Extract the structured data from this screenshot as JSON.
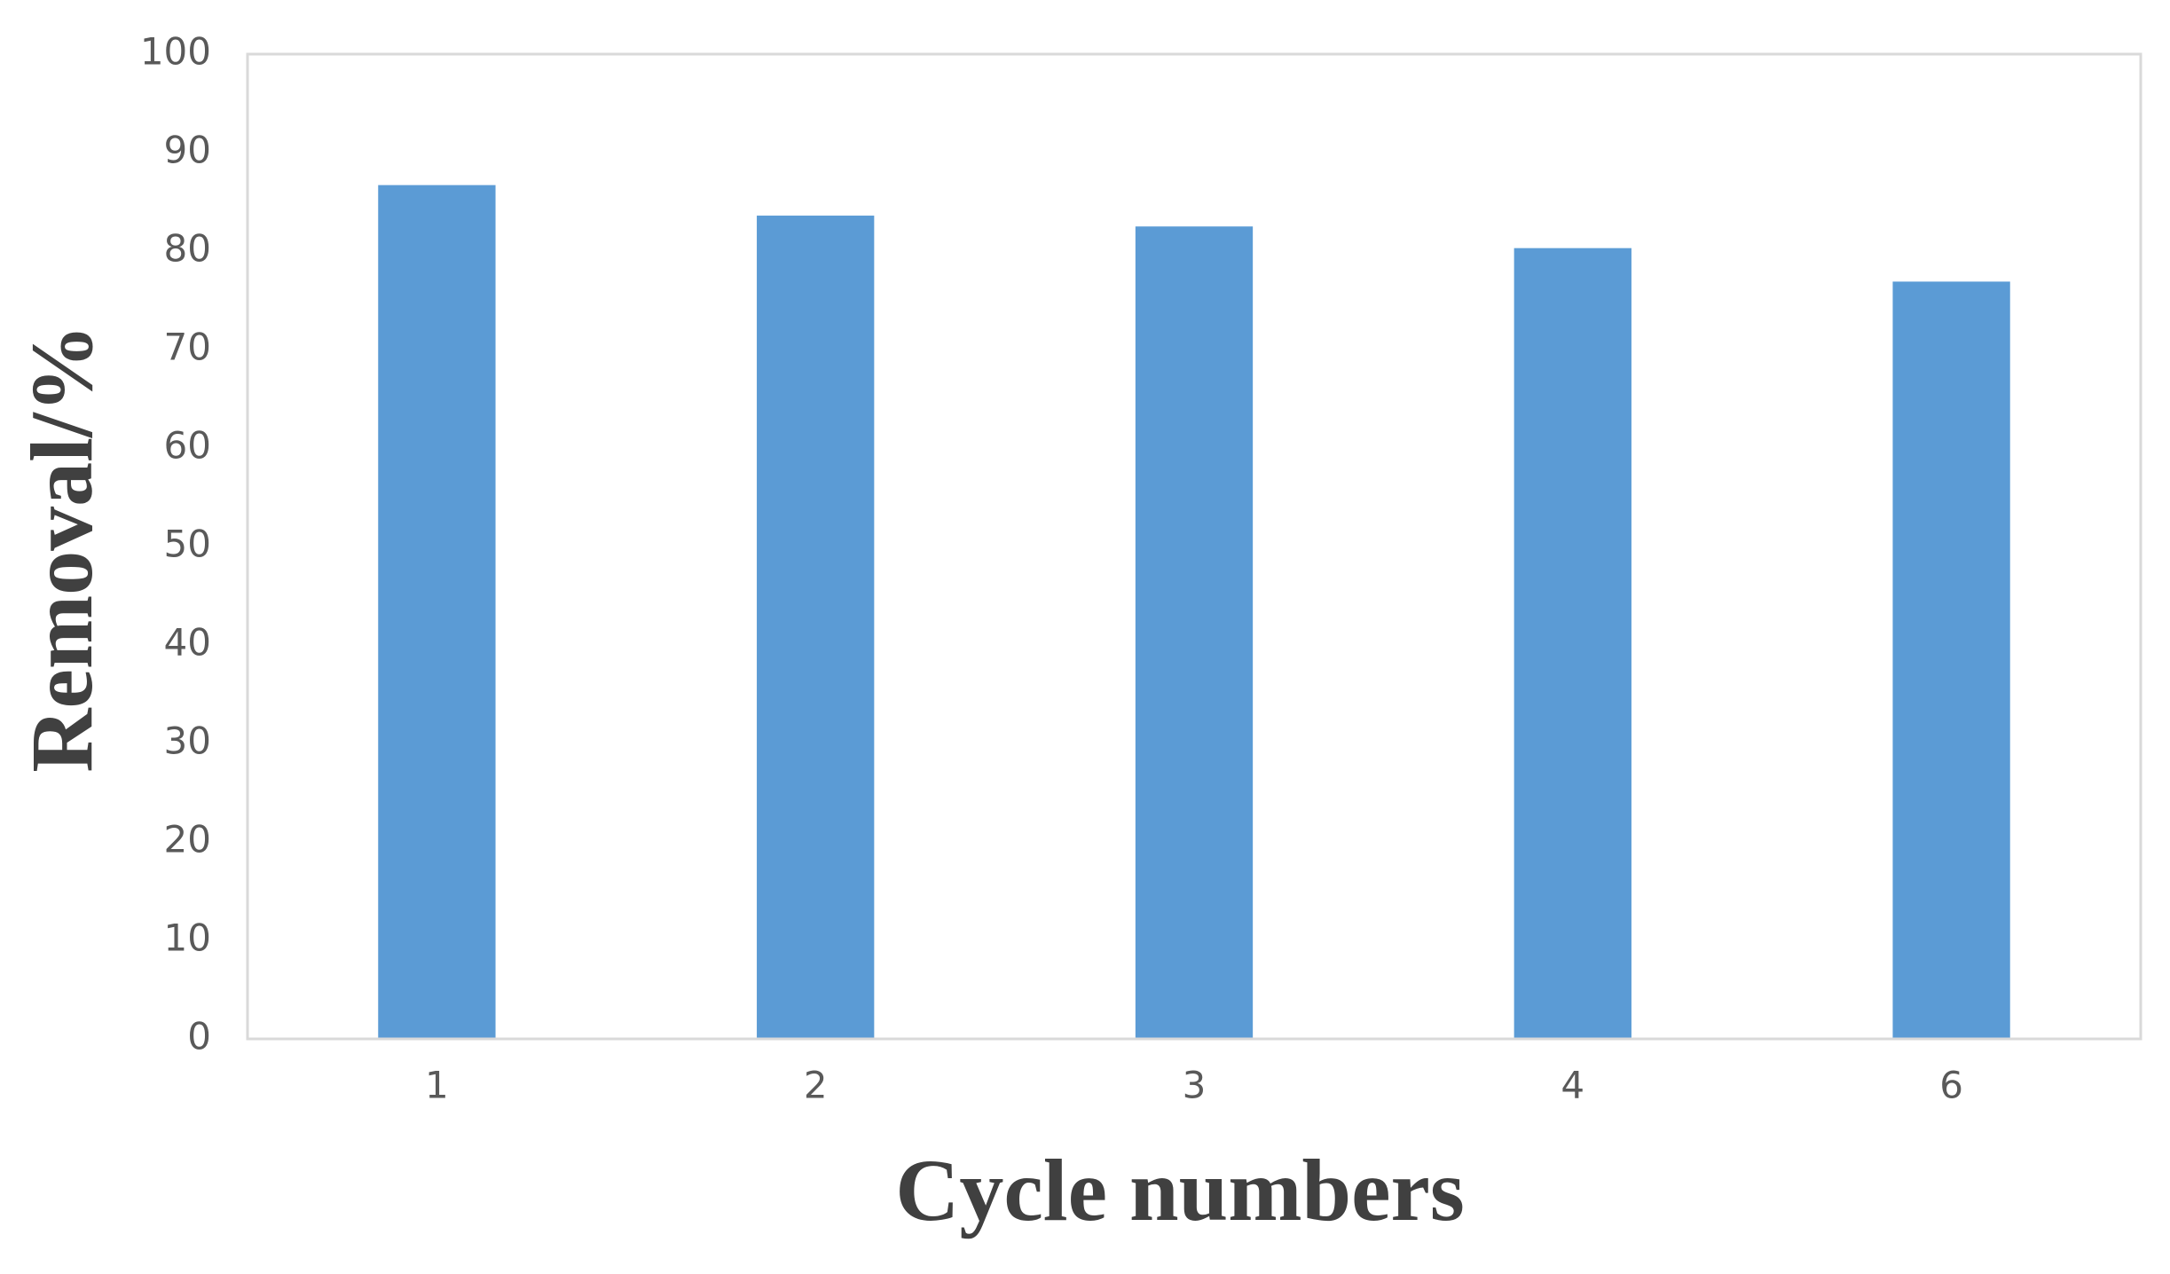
{
  "chart_data": {
    "type": "bar",
    "x_label": "Cycle numbers",
    "y_label": "Removal/%",
    "categories": [
      "1",
      "2",
      "3",
      "4",
      "6"
    ],
    "values": [
      86.7,
      83.6,
      82.5,
      80.3,
      76.9
    ],
    "color": "#5b9bd5",
    "ylim": [
      0,
      100
    ],
    "yticks": [
      0,
      10,
      20,
      30,
      40,
      50,
      60,
      70,
      80,
      90,
      100
    ],
    "grid": false
  }
}
